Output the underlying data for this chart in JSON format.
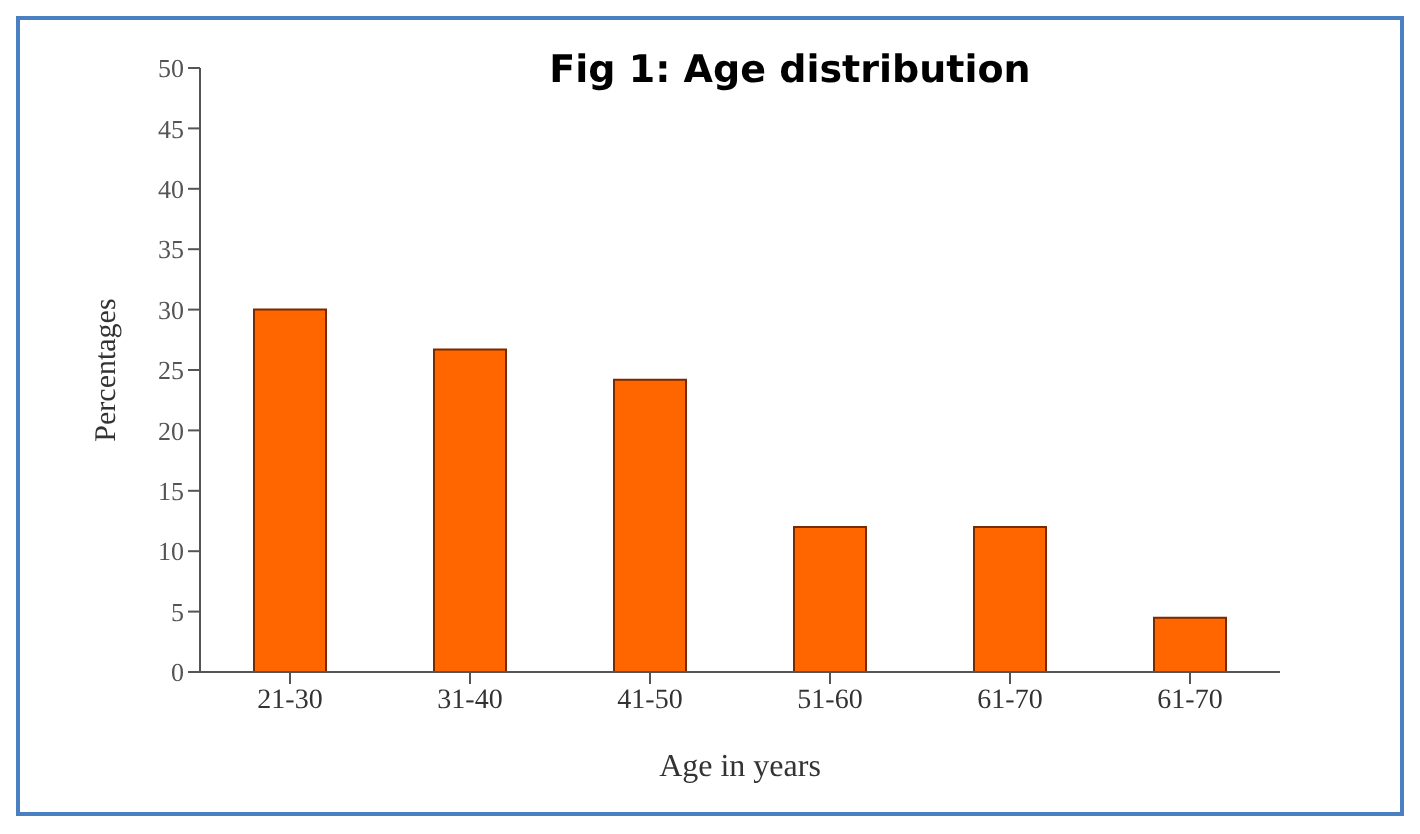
{
  "chart_data": {
    "type": "bar",
    "title": "Fig 1: Age distribution",
    "xlabel": "Age  in years",
    "ylabel": "Percentages",
    "categories": [
      "21-30",
      "31-40",
      "41-50",
      "51-60",
      "61-70",
      "61-70"
    ],
    "values": [
      30,
      26.7,
      24.2,
      12,
      12,
      4.5
    ],
    "color": "#ff6600",
    "ylim": [
      0,
      50
    ],
    "yticks": [
      0,
      5,
      10,
      15,
      20,
      25,
      30,
      35,
      40,
      45,
      50
    ],
    "grid": false
  }
}
